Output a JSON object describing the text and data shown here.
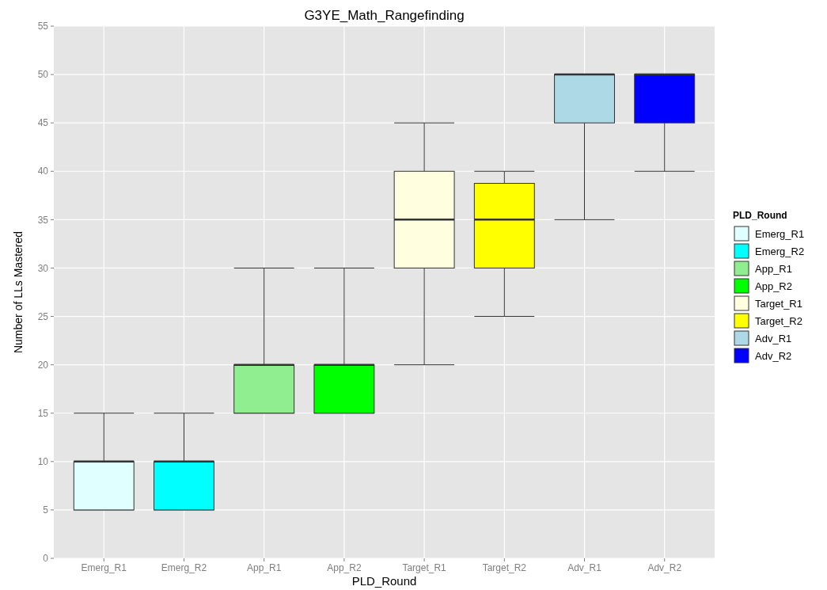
{
  "chart_data": {
    "type": "box",
    "title": "G3YE_Math_Rangefinding",
    "xlabel": "PLD_Round",
    "ylabel": "Number of LLs Mastered",
    "legend_title": "PLD_Round",
    "categories": [
      "Emerg_R1",
      "Emerg_R2",
      "App_R1",
      "App_R2",
      "Target_R1",
      "Target_R2",
      "Adv_R1",
      "Adv_R2"
    ],
    "series": [
      {
        "name": "Emerg_R1",
        "color": "#e0ffff",
        "boxes": [
          {
            "low": 5,
            "q1": 5,
            "median": 10,
            "q3": 10,
            "high": 15
          },
          null,
          null,
          null,
          null,
          null,
          null,
          null
        ]
      },
      {
        "name": "Emerg_R2",
        "color": "#00ffff",
        "boxes": [
          null,
          {
            "low": 5,
            "q1": 5,
            "median": 10,
            "q3": 10,
            "high": 15
          },
          null,
          null,
          null,
          null,
          null,
          null
        ]
      },
      {
        "name": "App_R1",
        "color": "#90ee90",
        "boxes": [
          null,
          null,
          {
            "low": 15,
            "q1": 15,
            "median": 20,
            "q3": 20,
            "high": 30
          },
          null,
          null,
          null,
          null,
          null
        ]
      },
      {
        "name": "App_R2",
        "color": "#00ff00",
        "boxes": [
          null,
          null,
          null,
          {
            "low": 15,
            "q1": 15,
            "median": 20,
            "q3": 20,
            "high": 30
          },
          null,
          null,
          null,
          null
        ]
      },
      {
        "name": "Target_R1",
        "color": "#ffffe0",
        "boxes": [
          null,
          null,
          null,
          null,
          {
            "low": 20,
            "q1": 30,
            "median": 35,
            "q3": 40,
            "high": 45
          },
          null,
          null,
          null
        ]
      },
      {
        "name": "Target_R2",
        "color": "#ffff00",
        "boxes": [
          null,
          null,
          null,
          null,
          null,
          {
            "low": 25,
            "q1": 30,
            "median": 35,
            "q3": 38.75,
            "high": 40
          },
          null,
          null
        ]
      },
      {
        "name": "Adv_R1",
        "color": "#add8e6",
        "boxes": [
          null,
          null,
          null,
          null,
          null,
          null,
          {
            "low": 35,
            "q1": 45,
            "median": 50,
            "q3": 50,
            "high": 50
          },
          null
        ]
      },
      {
        "name": "Adv_R2",
        "color": "#0000ff",
        "boxes": [
          null,
          null,
          null,
          null,
          null,
          null,
          null,
          {
            "low": 40,
            "q1": 45,
            "median": 50,
            "q3": 50,
            "high": 50
          }
        ]
      }
    ],
    "ylim": [
      0,
      55
    ],
    "yticks": [
      0,
      5,
      10,
      15,
      20,
      25,
      30,
      35,
      40,
      45,
      50,
      55
    ],
    "grid": true,
    "legend": "right"
  }
}
